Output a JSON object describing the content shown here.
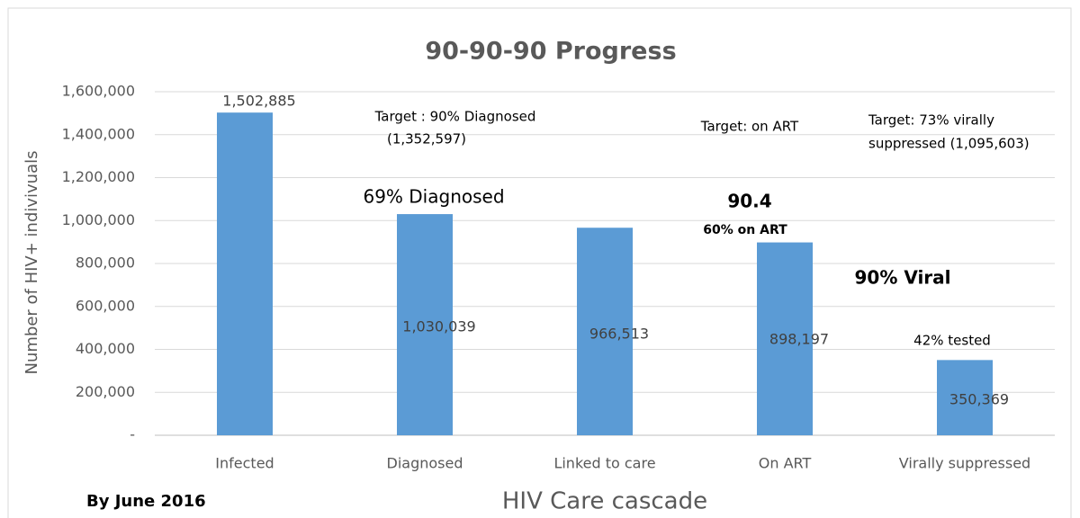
{
  "chart_data": {
    "type": "bar",
    "title": "90-90-90 Progress",
    "y_axis_label": "Number of HIV+ indivivuals",
    "x_axis_label": "HIV Care cascade",
    "footnote": "By June 2016",
    "categories": [
      "Infected",
      "Diagnosed",
      "Linked to care",
      "On ART",
      "Virally suppressed"
    ],
    "values": [
      1502885,
      1030039,
      966513,
      898197,
      350369
    ],
    "value_labels": [
      "1,502,885",
      "1,030,039",
      "966,513",
      "898,197",
      "350,369"
    ],
    "color": "#5b9bd5",
    "ylim": [
      0,
      1600000
    ],
    "yticks": [
      {
        "value": 0,
        "label": "-"
      },
      {
        "value": 200000,
        "label": "200,000"
      },
      {
        "value": 400000,
        "label": "400,000"
      },
      {
        "value": 600000,
        "label": "600,000"
      },
      {
        "value": 800000,
        "label": "800,000"
      },
      {
        "value": 1000000,
        "label": "1,000,000"
      },
      {
        "value": 1200000,
        "label": "1,200,000"
      },
      {
        "value": 1400000,
        "label": "1,400,000"
      },
      {
        "value": 1600000,
        "label": "1,600,000"
      }
    ],
    "grid": true,
    "annotations": [
      "69% Diagnosed",
      "Target : 90% Diagnosed",
      "(1,352,597)",
      "Target: on ART",
      "Target: 73% virally",
      "suppressed (1,095,603)",
      "90.4",
      "60% on ART",
      "90% Viral",
      "42% tested"
    ]
  }
}
